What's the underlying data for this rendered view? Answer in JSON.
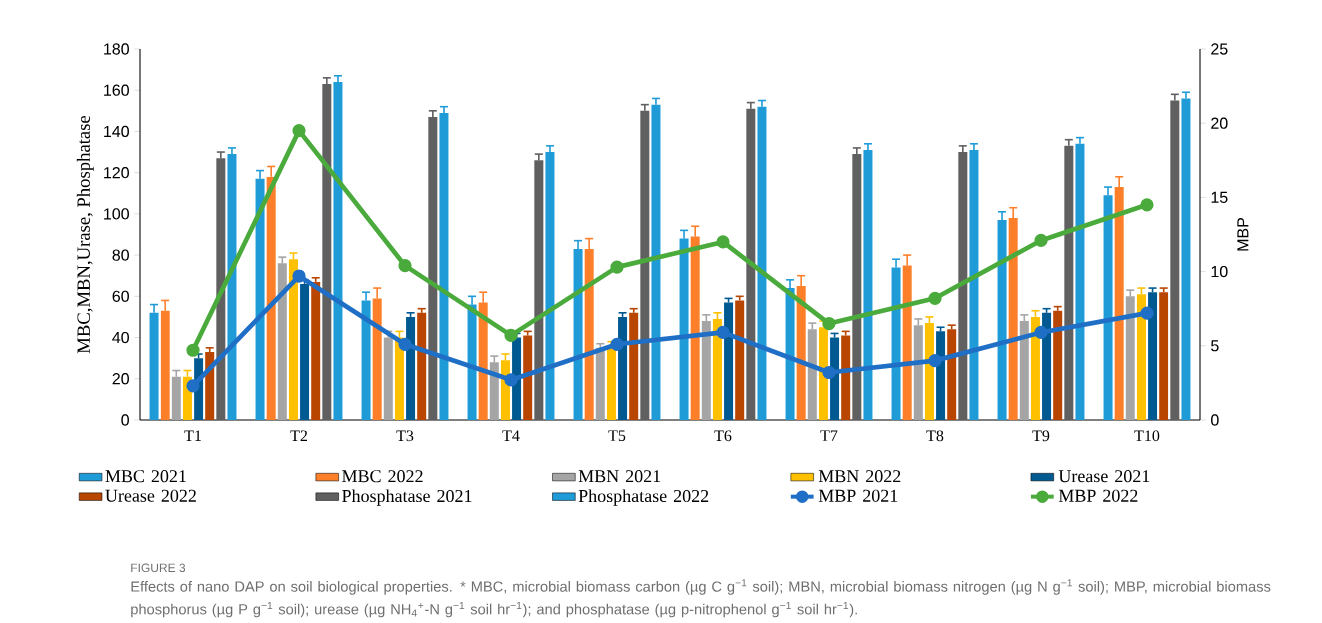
{
  "chart_data": {
    "type": "bar",
    "categories": [
      "T1",
      "T2",
      "T3",
      "T4",
      "T5",
      "T6",
      "T7",
      "T8",
      "T9",
      "T10"
    ],
    "ylabel": "MBC,MBN,Urase, Phosphatase",
    "y2label": "MBP",
    "ylim": [
      0,
      180
    ],
    "yticks": [
      0,
      20,
      40,
      60,
      80,
      100,
      120,
      140,
      160,
      180
    ],
    "y2lim": [
      0,
      25
    ],
    "y2ticks": [
      0,
      5,
      10,
      15,
      20,
      25
    ],
    "legend": "bottom",
    "marker": "circle",
    "annotations": [
      "FIGURE 3",
      "Effects of nano DAP on soil biological properties. * MBC, microbial biomass carbon (µg C g$^{−1}$ soil); MBN, microbial biomass nitrogen (µg N g$^{−1}$ soil); MBP, microbial biomass phosphorus (µg P g$^{−1}$ soil); urease (µg NH$_{4}$$^{+}$-N g$^{−1}$ soil hr$^{−1}$); and phosphatase (µg p-nitrophenol g$^{−1}$ soil hr$^{−1}$)."
    ],
    "series": [
      {
        "name": "MBC 2021",
        "color": "#1f9bd7",
        "values": [
          52,
          117,
          58,
          56,
          83,
          88,
          64,
          74,
          97,
          109
        ],
        "errors": [
          4,
          4,
          4,
          4,
          4,
          4,
          4,
          4,
          4,
          4
        ]
      },
      {
        "name": "MBC 2022",
        "color": "#fe7f2a",
        "values": [
          53,
          118,
          59,
          57,
          83,
          89,
          65,
          75,
          98,
          113
        ],
        "errors": [
          5,
          5,
          5,
          5,
          5,
          5,
          5,
          5,
          5,
          5
        ]
      },
      {
        "name": "MBN 2021",
        "color": "#a5a5a5",
        "values": [
          21,
          76,
          40,
          28,
          35,
          48,
          44,
          46,
          48,
          60
        ],
        "errors": [
          3,
          3,
          3,
          3,
          2,
          3,
          3,
          3,
          3,
          3
        ]
      },
      {
        "name": "MBN 2022",
        "color": "#ffc000",
        "values": [
          21,
          78,
          40,
          29,
          36,
          49,
          45,
          47,
          50,
          61
        ],
        "errors": [
          3,
          3,
          3,
          3,
          2,
          3,
          3,
          3,
          3,
          3
        ]
      },
      {
        "name": "Urease  2021",
        "color": "#005a91",
        "values": [
          30,
          66,
          50,
          40,
          50,
          57,
          40,
          43,
          52,
          62
        ],
        "errors": [
          2,
          2,
          2,
          2,
          2,
          2,
          2,
          2,
          2,
          2
        ]
      },
      {
        "name": "Urease  2022",
        "color": "#b84500",
        "values": [
          33,
          67,
          52,
          41,
          52,
          58,
          41,
          44,
          53,
          62
        ],
        "errors": [
          2,
          2,
          2,
          2,
          2,
          2,
          2,
          2,
          2,
          2
        ]
      },
      {
        "name": "Phosphatase  2021",
        "color": "#606060",
        "values": [
          127,
          163,
          147,
          126,
          150,
          151,
          129,
          130,
          133,
          155
        ],
        "errors": [
          3,
          3,
          3,
          3,
          3,
          3,
          3,
          3,
          3,
          3
        ]
      },
      {
        "name": "Phosphatase  2022",
        "color": "#1f9bd7",
        "values": [
          129,
          164,
          149,
          130,
          153,
          152,
          131,
          131,
          134,
          156
        ],
        "errors": [
          3,
          3,
          3,
          3,
          3,
          3,
          3,
          3,
          3,
          3
        ]
      },
      {
        "name": "MBP 2021",
        "type": "line",
        "axis": "y2",
        "color": "#1f6fc6",
        "values": [
          2.3,
          9.7,
          5.1,
          2.7,
          5.1,
          5.9,
          3.2,
          4.0,
          5.9,
          7.2
        ]
      },
      {
        "name": "MBP 2022",
        "type": "line",
        "axis": "y2",
        "color": "#4aab3c",
        "values": [
          4.7,
          19.5,
          10.4,
          5.7,
          10.3,
          12.0,
          6.5,
          8.2,
          12.1,
          14.5
        ]
      }
    ]
  }
}
